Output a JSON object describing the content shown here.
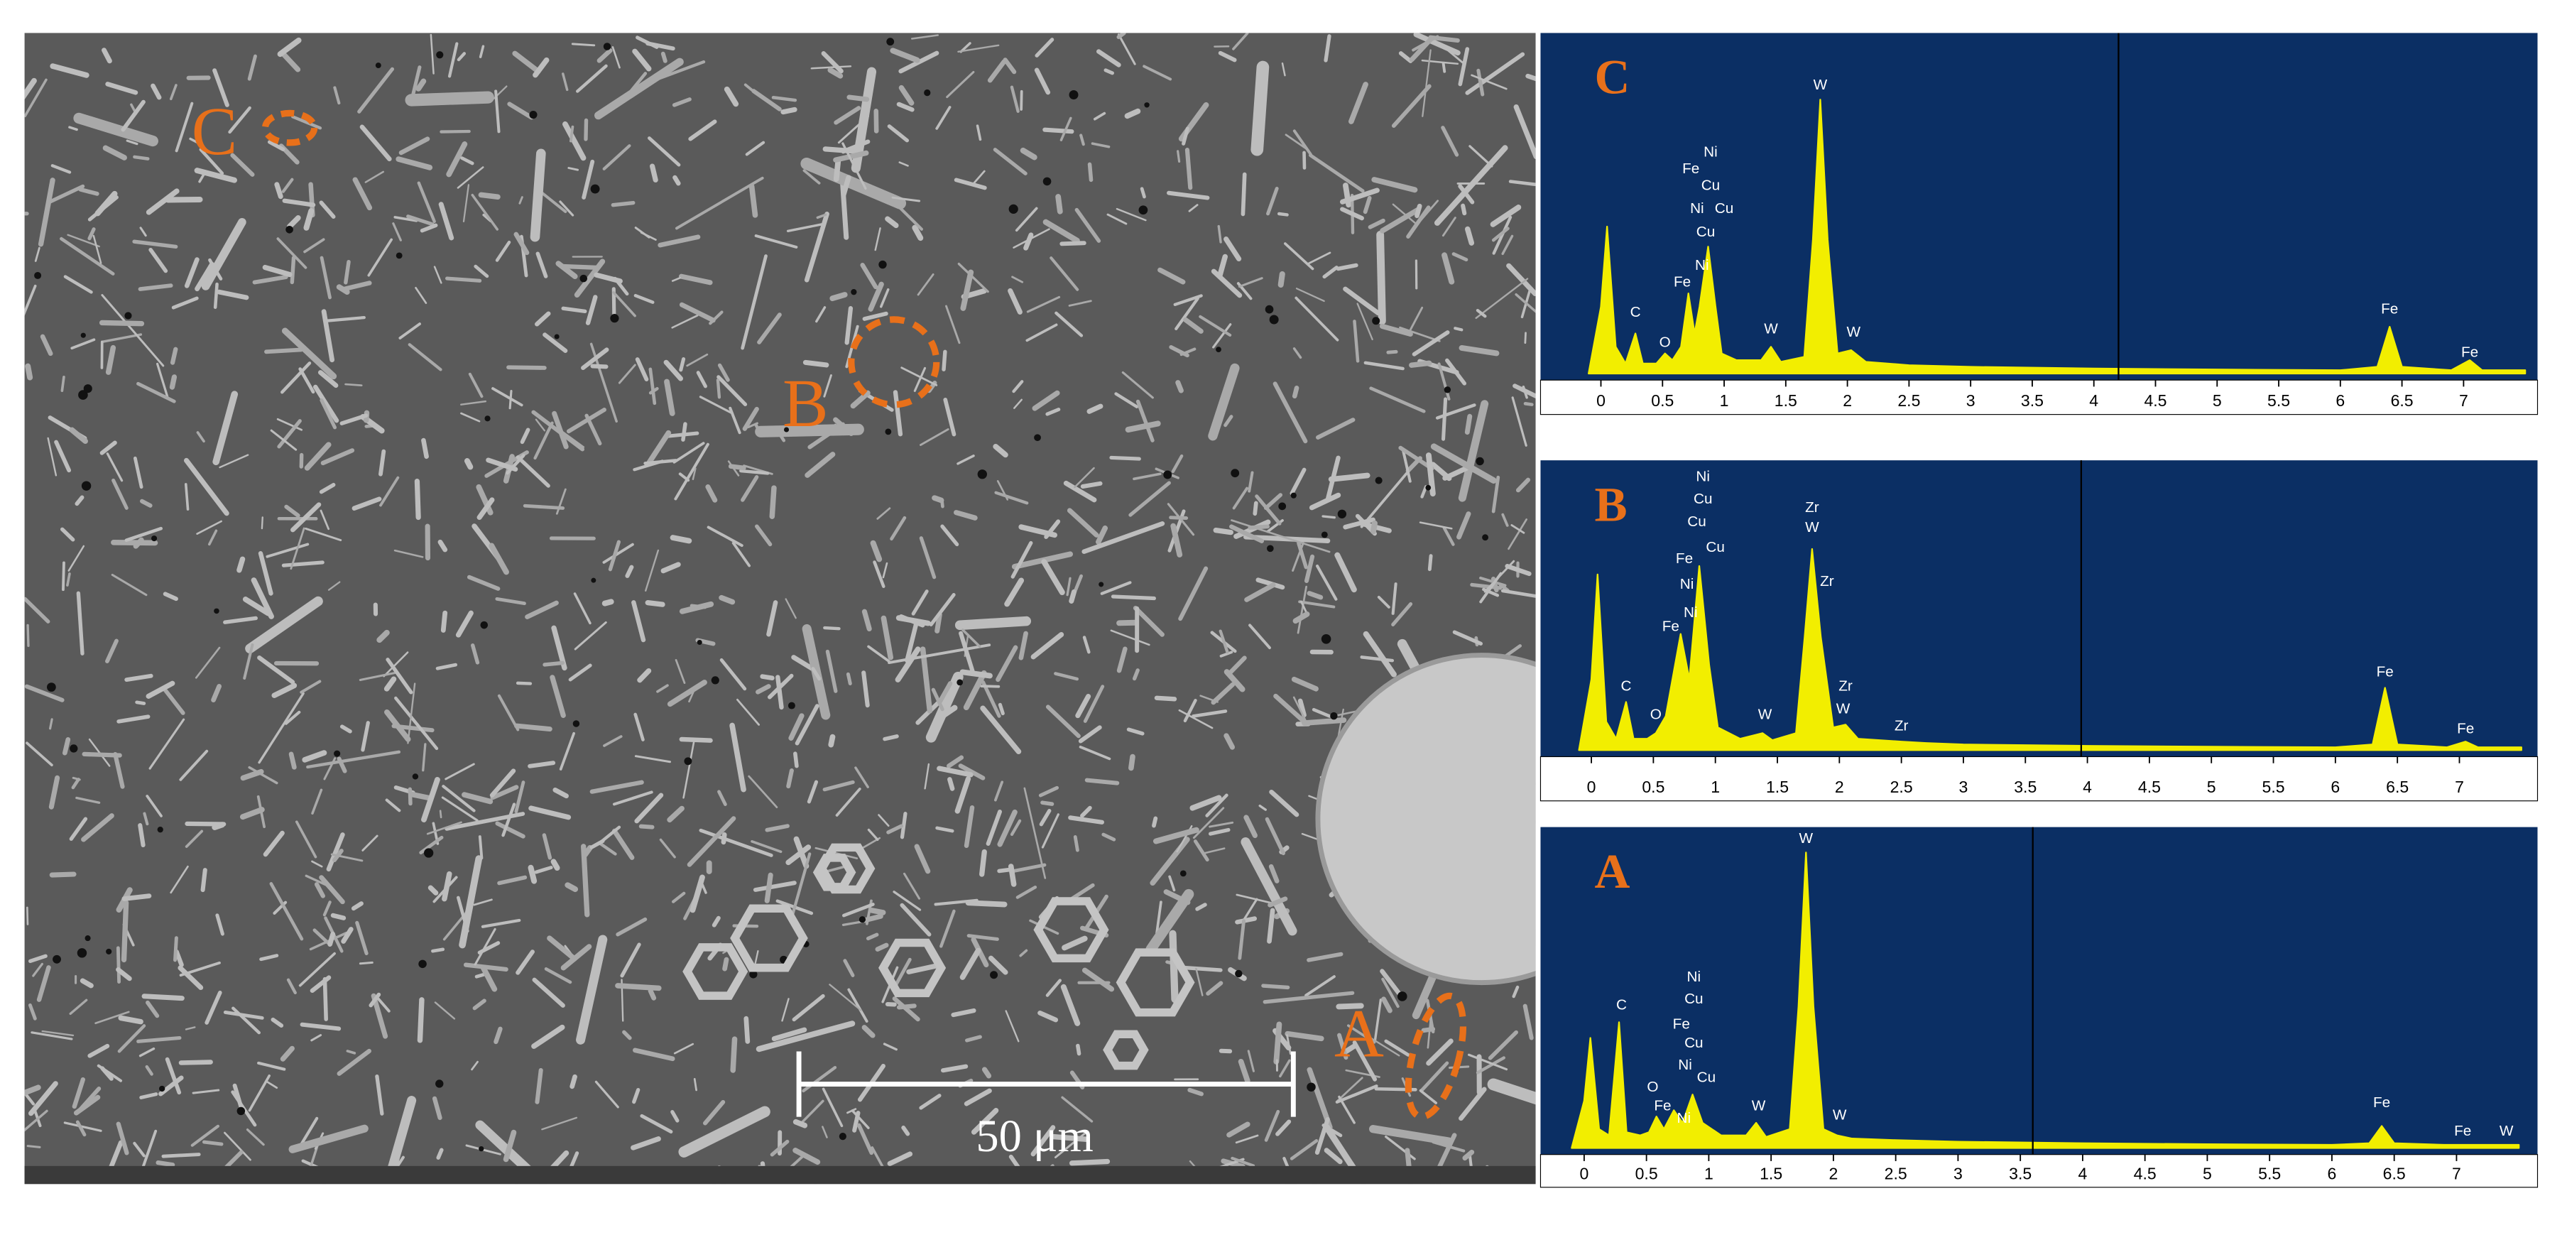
{
  "micrograph": {
    "region_labels": [
      "C",
      "B",
      "A"
    ],
    "scale_bar": "50 μm"
  },
  "chart_data": [
    {
      "type": "area",
      "title": "C",
      "color": "#f2ee00",
      "xlim": [
        -0.49,
        7.6
      ],
      "ylim": [
        0,
        100
      ],
      "xticks": [
        0,
        0.5,
        1,
        1.5,
        2,
        2.5,
        3,
        3.5,
        4,
        4.5,
        5,
        5.5,
        6,
        6.5,
        7
      ],
      "cursor": 4.2,
      "x": [
        -0.1,
        0.0,
        0.05,
        0.12,
        0.2,
        0.28,
        0.34,
        0.45,
        0.52,
        0.58,
        0.65,
        0.71,
        0.76,
        0.8,
        0.87,
        0.93,
        0.98,
        1.1,
        1.3,
        1.38,
        1.46,
        1.65,
        1.72,
        1.78,
        1.84,
        1.92,
        2.03,
        2.15,
        2.5,
        3,
        4,
        5,
        6,
        6.3,
        6.4,
        6.5,
        6.9,
        7.05,
        7.15,
        7.5
      ],
      "values": [
        0,
        20,
        44,
        8,
        3,
        12,
        3,
        3,
        6,
        4,
        8,
        24,
        12,
        20,
        38,
        20,
        6,
        4,
        4,
        8,
        3.5,
        5,
        40,
        82,
        40,
        6,
        7,
        3.5,
        2.5,
        2,
        1.5,
        1.2,
        1,
        2,
        14,
        2,
        1,
        4,
        1,
        1
      ],
      "annotations": [
        {
          "text": "C",
          "x": 0.28,
          "y": 17
        },
        {
          "text": "O",
          "x": 0.52,
          "y": 8
        },
        {
          "text": "Fe",
          "x": 0.66,
          "y": 26
        },
        {
          "text": "Ni",
          "x": 0.82,
          "y": 31
        },
        {
          "text": "Cu",
          "x": 0.85,
          "y": 41
        },
        {
          "text": "Ni",
          "x": 0.78,
          "y": 48
        },
        {
          "text": "Cu",
          "x": 1.0,
          "y": 48
        },
        {
          "text": "Cu",
          "x": 0.89,
          "y": 55
        },
        {
          "text": "Fe",
          "x": 0.73,
          "y": 60
        },
        {
          "text": "Ni",
          "x": 0.89,
          "y": 65
        },
        {
          "text": "W",
          "x": 1.78,
          "y": 85
        },
        {
          "text": "W",
          "x": 1.38,
          "y": 12
        },
        {
          "text": "W",
          "x": 2.05,
          "y": 11
        },
        {
          "text": "Fe",
          "x": 6.4,
          "y": 18
        },
        {
          "text": "Fe",
          "x": 7.05,
          "y": 5
        }
      ]
    },
    {
      "type": "area",
      "title": "B",
      "color": "#f2ee00",
      "xlim": [
        -0.41,
        7.63
      ],
      "ylim": [
        0,
        100
      ],
      "xticks": [
        0,
        0.5,
        1,
        1.5,
        2,
        2.5,
        3,
        3.5,
        4,
        4.5,
        5,
        5.5,
        6,
        6.5,
        7
      ],
      "cursor": 3.95,
      "x": [
        -0.1,
        0.0,
        0.05,
        0.12,
        0.2,
        0.28,
        0.34,
        0.45,
        0.52,
        0.6,
        0.72,
        0.79,
        0.87,
        0.95,
        1.02,
        1.2,
        1.38,
        1.46,
        1.65,
        1.72,
        1.78,
        1.85,
        1.95,
        2.05,
        2.15,
        2.5,
        2.7,
        3,
        4,
        5,
        6,
        6.3,
        6.4,
        6.5,
        6.9,
        7.05,
        7.15,
        7.5
      ],
      "values": [
        0,
        25,
        62,
        10,
        4,
        17,
        4,
        4,
        6,
        12,
        41,
        25,
        65,
        30,
        8,
        4,
        6,
        3.5,
        6,
        40,
        71,
        40,
        8,
        9,
        4,
        3,
        2.5,
        2,
        1.5,
        1.2,
        1,
        2,
        22,
        2,
        1,
        3,
        1,
        1
      ],
      "annotations": [
        {
          "text": "C",
          "x": 0.28,
          "y": 21
        },
        {
          "text": "O",
          "x": 0.52,
          "y": 11
        },
        {
          "text": "Fe",
          "x": 0.64,
          "y": 42
        },
        {
          "text": "Ni",
          "x": 0.8,
          "y": 47
        },
        {
          "text": "Ni",
          "x": 0.77,
          "y": 57
        },
        {
          "text": "Fe",
          "x": 0.75,
          "y": 66
        },
        {
          "text": "Cu",
          "x": 1.0,
          "y": 70
        },
        {
          "text": "Cu",
          "x": 0.85,
          "y": 79
        },
        {
          "text": "Cu",
          "x": 0.9,
          "y": 87
        },
        {
          "text": "Ni",
          "x": 0.9,
          "y": 95
        },
        {
          "text": "Zr",
          "x": 1.78,
          "y": 84
        },
        {
          "text": "W",
          "x": 1.78,
          "y": 77
        },
        {
          "text": "Zr",
          "x": 1.9,
          "y": 58
        },
        {
          "text": "Zr",
          "x": 2.05,
          "y": 21
        },
        {
          "text": "W",
          "x": 2.03,
          "y": 13
        },
        {
          "text": "Zr",
          "x": 2.5,
          "y": 7
        },
        {
          "text": "W",
          "x": 1.4,
          "y": 11
        },
        {
          "text": "Fe",
          "x": 6.4,
          "y": 26
        },
        {
          "text": "Fe",
          "x": 7.05,
          "y": 6
        }
      ]
    },
    {
      "type": "area",
      "title": "A",
      "color": "#f2ee00",
      "xlim": [
        -0.35,
        7.65
      ],
      "ylim": [
        0,
        100
      ],
      "xticks": [
        0,
        0.5,
        1,
        1.5,
        2,
        2.5,
        3,
        3.5,
        4,
        4.5,
        5,
        5.5,
        6,
        6.5,
        7
      ],
      "cursor": 3.6,
      "x": [
        -0.1,
        0.0,
        0.05,
        0.12,
        0.2,
        0.28,
        0.34,
        0.45,
        0.52,
        0.58,
        0.64,
        0.72,
        0.79,
        0.87,
        0.95,
        1.1,
        1.3,
        1.38,
        1.46,
        1.65,
        1.72,
        1.78,
        1.84,
        1.92,
        2.03,
        2.15,
        2.5,
        3,
        4,
        5,
        6,
        6.3,
        6.4,
        6.5,
        6.9,
        7.05,
        7.15,
        7.5
      ],
      "values": [
        0,
        15,
        35,
        6,
        4,
        40,
        5,
        4,
        5,
        10,
        6,
        12,
        8,
        17,
        8,
        4,
        4,
        8,
        3.5,
        6,
        45,
        94,
        45,
        6,
        4,
        3,
        2.5,
        2,
        1.5,
        1.2,
        1,
        1.5,
        7,
        1.5,
        1,
        1,
        1,
        1
      ],
      "annotations": [
        {
          "text": "C",
          "x": 0.3,
          "y": 44
        },
        {
          "text": "O",
          "x": 0.55,
          "y": 18
        },
        {
          "text": "Fe",
          "x": 0.63,
          "y": 12
        },
        {
          "text": "Ni",
          "x": 0.8,
          "y": 8
        },
        {
          "text": "Cu",
          "x": 0.98,
          "y": 21
        },
        {
          "text": "Ni",
          "x": 0.81,
          "y": 25
        },
        {
          "text": "Cu",
          "x": 0.88,
          "y": 32
        },
        {
          "text": "Fe",
          "x": 0.78,
          "y": 38
        },
        {
          "text": "Cu",
          "x": 0.88,
          "y": 46
        },
        {
          "text": "Ni",
          "x": 0.88,
          "y": 53
        },
        {
          "text": "W",
          "x": 1.78,
          "y": 97
        },
        {
          "text": "W",
          "x": 1.4,
          "y": 12
        },
        {
          "text": "W",
          "x": 2.05,
          "y": 9
        },
        {
          "text": "Fe",
          "x": 6.4,
          "y": 13
        },
        {
          "text": "Fe",
          "x": 7.05,
          "y": 4
        },
        {
          "text": "W",
          "x": 7.4,
          "y": 4
        }
      ]
    }
  ]
}
